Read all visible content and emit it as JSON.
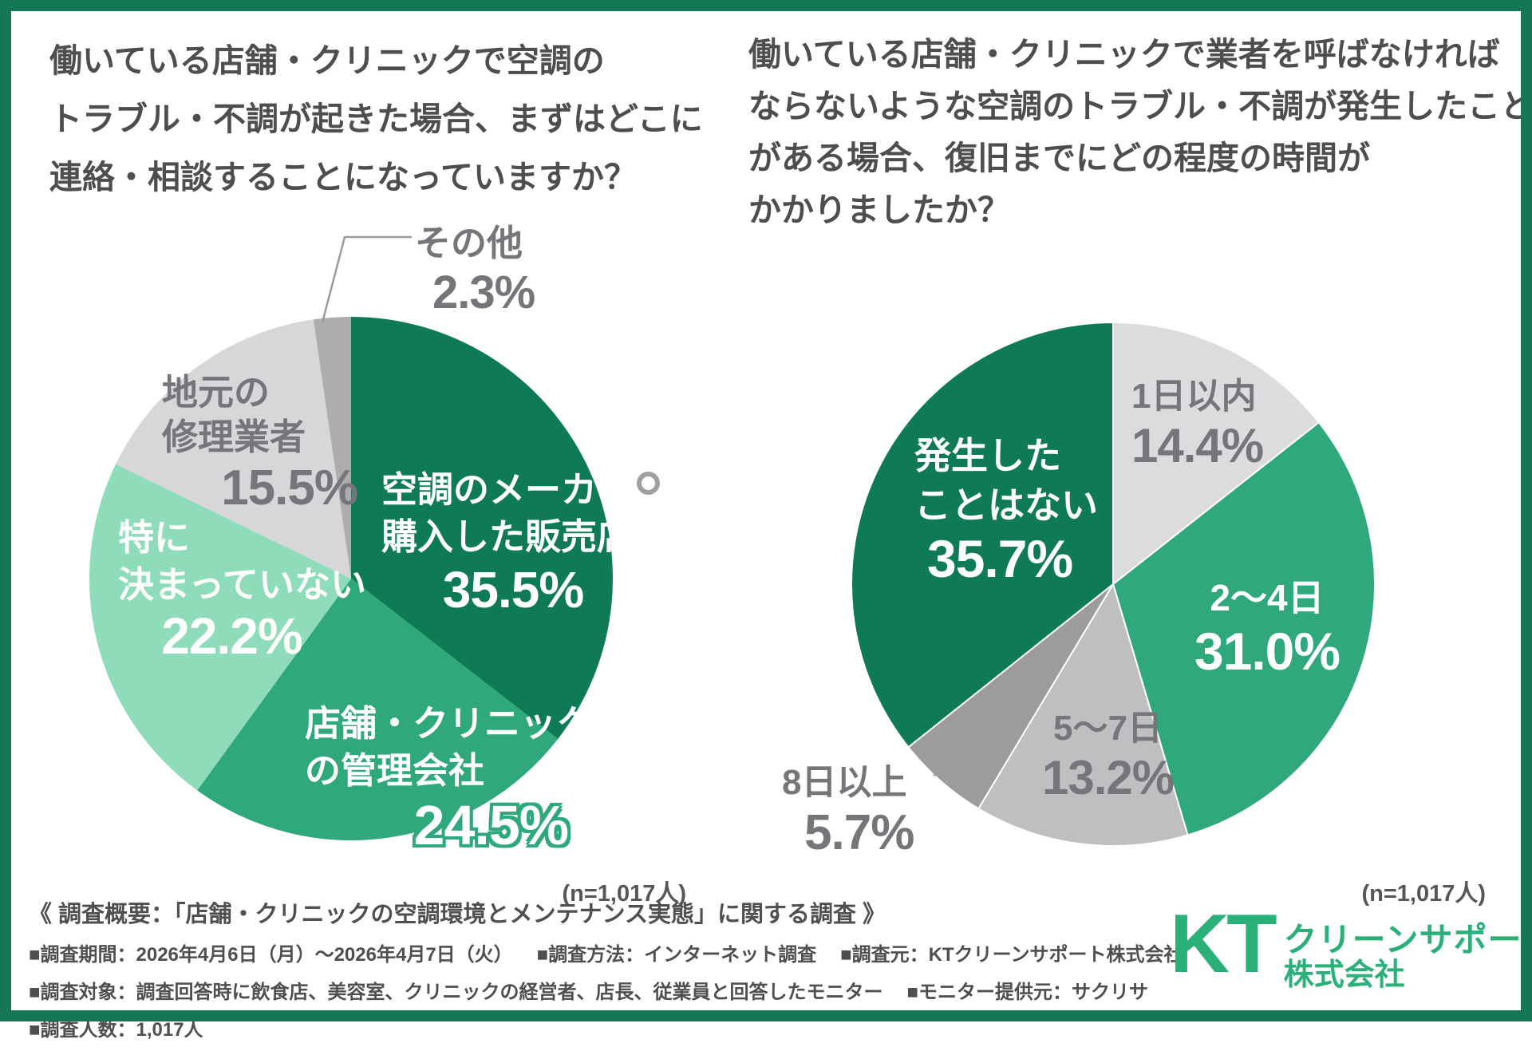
{
  "header": {
    "left_title_lines": [
      "働いている店舗・クリニックで空調の",
      "トラブル・不調が起きた場合、まずはどこに",
      "連絡・相談することになっていますか？"
    ],
    "right_title_lines": [
      "働いている店舗・クリニックで業者を呼ばなければ",
      "ならないような空調のトラブル・不調が発生したこと",
      "がある場合、復旧までにどの程度の時間が",
      "かかりましたか？"
    ]
  },
  "chart_data": [
    {
      "type": "pie",
      "title": "働いている店舗・クリニックで空調のトラブル・不調が起きた場合、まずはどこに連絡・相談することになっていますか？",
      "n": "(n=1,017人)",
      "start_angle_deg": 0,
      "direction": "clockwise",
      "slices": [
        {
          "label": "空調のメーカー・購入した販売店",
          "label_lines": [
            "空調のメーカー",
            "購入した販売店"
          ],
          "wrap_mark": "。",
          "value": 35.5,
          "pct_text": "35.5%",
          "color": "#0F7B55",
          "text_color": "#FFFFFF"
        },
        {
          "label": "店舗・クリニックの管理会社",
          "label_lines": [
            "店舗・クリニック",
            "の管理会社"
          ],
          "value": 24.5,
          "pct_text": "24.5%",
          "color": "#2FA97B",
          "text_color": "#FFFFFF"
        },
        {
          "label": "特に決まっていない",
          "label_lines": [
            "特に",
            "決まっていない"
          ],
          "value": 22.2,
          "pct_text": "22.2%",
          "color": "#8FDCBA",
          "text_color": "#FFFFFF"
        },
        {
          "label": "地元の修理業者",
          "label_lines": [
            "地元の",
            "修理業者"
          ],
          "value": 15.5,
          "pct_text": "15.5%",
          "color": "#D7D7D9",
          "text_color": "#76767A"
        },
        {
          "label": "その他",
          "label_lines": [
            "その他"
          ],
          "value": 2.3,
          "pct_text": "2.3%",
          "color": "#ADADAF",
          "text_color": "#76767A"
        }
      ]
    },
    {
      "type": "pie",
      "title": "働いている店舗・クリニックで業者を呼ばなければならないような空調のトラブル・不調が発生したことがある場合、復旧までにどの程度の時間がかかりましたか？",
      "n": "(n=1,017人)",
      "start_angle_deg": 0,
      "direction": "clockwise",
      "slices": [
        {
          "label": "1日以内",
          "label_lines": [
            "1日以内"
          ],
          "value": 14.4,
          "pct_text": "14.4%",
          "color": "#DCDCDE",
          "text_color": "#737377"
        },
        {
          "label": "2〜4日",
          "label_lines": [
            "2〜4日"
          ],
          "value": 31.0,
          "pct_text": "31.0%",
          "color": "#2FA97B",
          "text_color": "#FFFFFF"
        },
        {
          "label": "5〜7日",
          "label_lines": [
            "5〜7日"
          ],
          "value": 13.2,
          "pct_text": "13.2%",
          "color": "#BFBFC1",
          "text_color": "#737377"
        },
        {
          "label": "8日以上",
          "label_lines": [
            "8日以上"
          ],
          "value": 5.7,
          "pct_text": "5.7%",
          "color": "#9C9C9E",
          "text_color": "#737377"
        },
        {
          "label": "発生したことはない",
          "label_lines": [
            "発生した",
            "ことはない"
          ],
          "value": 35.7,
          "pct_text": "35.7%",
          "color": "#0F7B55",
          "text_color": "#FFFFFF"
        }
      ]
    }
  ],
  "survey": {
    "heading": "《 調査概要：「店舗・クリニックの空調環境とメンテナンス実態」に関する調査 》",
    "rows": [
      [
        "■調査期間：2026年4月6日（月）〜2026年4月7日（火）",
        "■調査方法：インターネット調査",
        "■調査元：KTクリーンサポート株式会社"
      ],
      [
        "■調査対象：調査回答時に飲食店、美容室、クリニックの経営者、店長、従業員と回答したモニター",
        "■モニター提供元：サクリサ"
      ],
      [
        "■調査人数：1,017人"
      ]
    ]
  },
  "logo": {
    "mark": "KT",
    "line1": "クリーンサポート",
    "line2": "株式会社",
    "color": "#2BB079"
  },
  "colors": {
    "frame": "#147857",
    "title_text": "#4E4E51",
    "gray_label": "#76767A",
    "accent_dark_green": "#0F7B55",
    "accent_green": "#2FA97B",
    "mint": "#8FDCBA"
  }
}
